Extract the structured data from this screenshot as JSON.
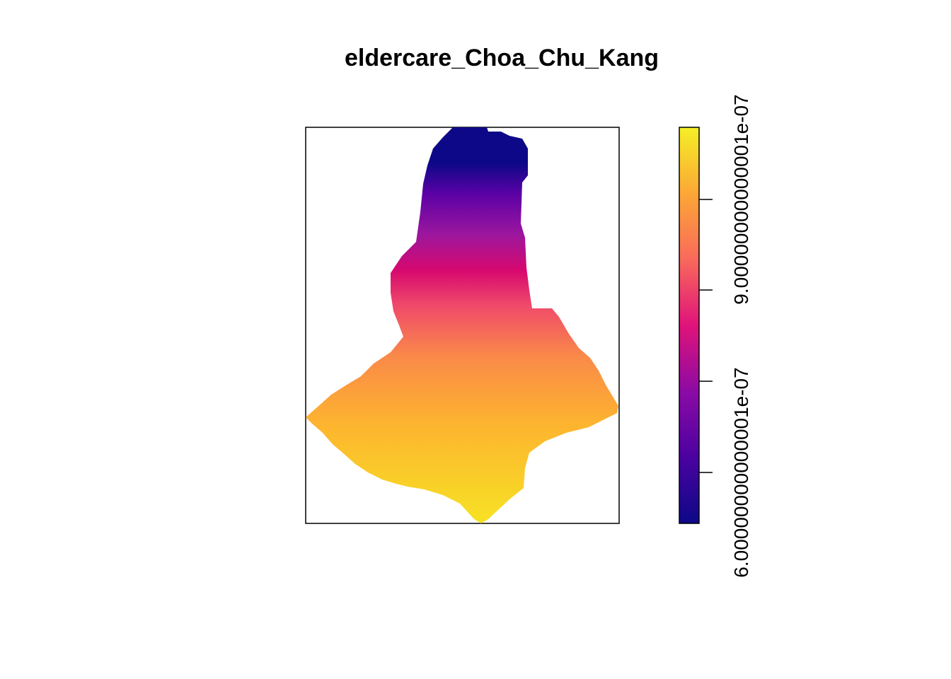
{
  "title": "eldercare_Choa_Chu_Kang",
  "legend": {
    "type": "continuous colorbar",
    "palette": "plasma",
    "colors": [
      "#0d0887",
      "#5c01a6",
      "#9c179e",
      "#cc4778",
      "#ed7953",
      "#fdb42f",
      "#f0f921"
    ],
    "tick_labels": [
      "6.00000000000001e-07",
      "9.00000000000001e-07"
    ]
  },
  "map": {
    "region": "Choa Chu Kang",
    "gradient": "low values in the north, high values in the south"
  }
}
